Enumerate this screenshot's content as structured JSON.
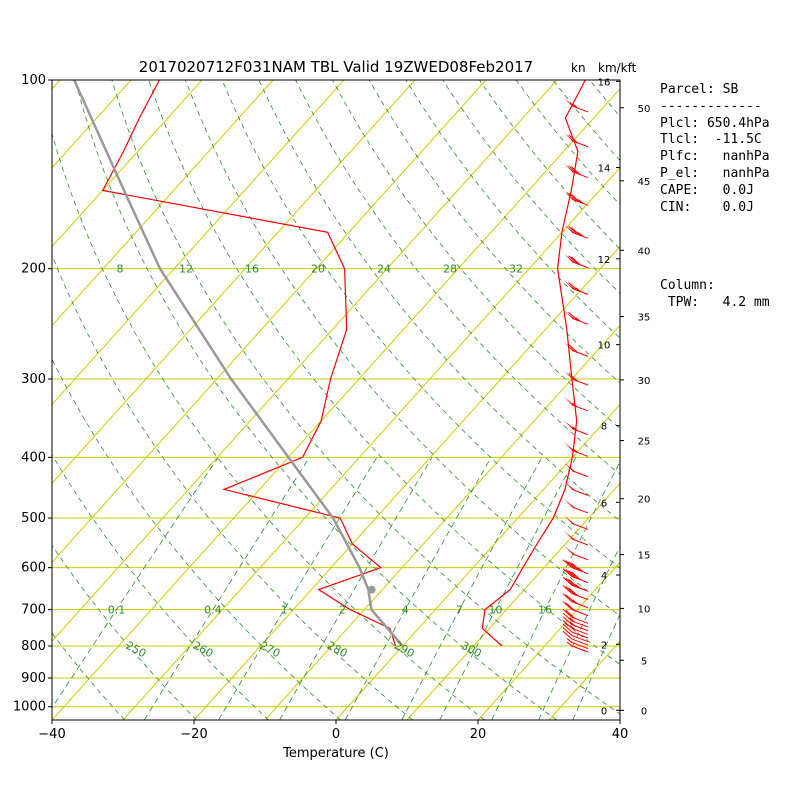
{
  "chart_data": {
    "type": "skew-t log-p sounding",
    "title": "2017020712F031NAM TBL Valid 19ZWED08Feb2017",
    "xlabel": "Temperature (C)",
    "ylabel": "",
    "x_ticks": [
      -40,
      -20,
      0,
      20,
      40
    ],
    "xlim": [
      -40,
      40
    ],
    "pressure_ticks": [
      100,
      200,
      300,
      400,
      500,
      600,
      700,
      800,
      900,
      1000
    ],
    "ylim_hpa": [
      1050,
      100
    ],
    "height_km_labels": [
      0,
      2,
      4,
      6,
      8,
      10,
      12,
      14,
      16
    ],
    "height_kft_labels": [
      0,
      5,
      10,
      15,
      20,
      25,
      30,
      35,
      40,
      45,
      50
    ],
    "wind_units_labels": [
      "kn",
      "km/kft"
    ],
    "dry_adiabat_labels": [
      "250",
      "260",
      "270",
      "280",
      "290",
      "300"
    ],
    "mixing_ratio_labels_700": [
      "0.1",
      "0.4",
      "1",
      "2",
      "4",
      "7",
      "10",
      "16"
    ],
    "mixing_ratio_labels_200": [
      "8",
      "12",
      "16",
      "20",
      "24",
      "28",
      "32"
    ],
    "temperature_profile": [
      {
        "p": 800,
        "t": 14.0
      },
      {
        "p": 750,
        "t": 9.0
      },
      {
        "p": 700,
        "t": 7.0
      },
      {
        "p": 650,
        "t": 8.0
      },
      {
        "p": 600,
        "t": 7.0
      },
      {
        "p": 550,
        "t": 6.0
      },
      {
        "p": 500,
        "t": 5.0
      },
      {
        "p": 450,
        "t": 3.0
      },
      {
        "p": 400,
        "t": 0.0
      },
      {
        "p": 350,
        "t": -4.0
      },
      {
        "p": 300,
        "t": -10.0
      },
      {
        "p": 250,
        "t": -17.0
      },
      {
        "p": 200,
        "t": -26.0
      },
      {
        "p": 175,
        "t": -30.0
      },
      {
        "p": 150,
        "t": -34.0
      },
      {
        "p": 130,
        "t": -38.0
      },
      {
        "p": 115,
        "t": -44.0
      },
      {
        "p": 100,
        "t": -46.0
      }
    ],
    "dewpoint_profile": [
      {
        "p": 800,
        "t": -1.0
      },
      {
        "p": 750,
        "t": -4.0
      },
      {
        "p": 700,
        "t": -12.0
      },
      {
        "p": 650,
        "t": -19.0
      },
      {
        "p": 600,
        "t": -13.0
      },
      {
        "p": 550,
        "t": -20.0
      },
      {
        "p": 500,
        "t": -25.0
      },
      {
        "p": 450,
        "t": -45.0
      },
      {
        "p": 400,
        "t": -38.0
      },
      {
        "p": 350,
        "t": -40.0
      },
      {
        "p": 300,
        "t": -44.0
      },
      {
        "p": 250,
        "t": -48.0
      },
      {
        "p": 200,
        "t": -56.0
      },
      {
        "p": 175,
        "t": -63.0
      },
      {
        "p": 150,
        "t": -100.0
      },
      {
        "p": 130,
        "t": -102.0
      },
      {
        "p": 115,
        "t": -104.0
      },
      {
        "p": 100,
        "t": -106.0
      }
    ],
    "parcel_profile": [
      {
        "p": 800,
        "t": 0.0
      },
      {
        "p": 700,
        "t": -9.0
      },
      {
        "p": 650,
        "t": -12.0
      },
      {
        "p": 600,
        "t": -16.0
      },
      {
        "p": 500,
        "t": -26.0
      },
      {
        "p": 400,
        "t": -40.0
      },
      {
        "p": 300,
        "t": -58.0
      },
      {
        "p": 200,
        "t": -82.0
      },
      {
        "p": 150,
        "t": -97.0
      },
      {
        "p": 100,
        "t": -118.0
      }
    ],
    "lcl_marker": {
      "p": 650.4,
      "t": -11.5
    },
    "wind_barbs": [
      {
        "p": 800,
        "spd": 5
      },
      {
        "p": 790,
        "spd": 5
      },
      {
        "p": 780,
        "spd": 10
      },
      {
        "p": 770,
        "spd": 10
      },
      {
        "p": 760,
        "spd": 10
      },
      {
        "p": 750,
        "spd": 15
      },
      {
        "p": 740,
        "spd": 15
      },
      {
        "p": 730,
        "spd": 15
      },
      {
        "p": 720,
        "spd": 20
      },
      {
        "p": 700,
        "spd": 20
      },
      {
        "p": 680,
        "spd": 25
      },
      {
        "p": 660,
        "spd": 30
      },
      {
        "p": 640,
        "spd": 35
      },
      {
        "p": 620,
        "spd": 40
      },
      {
        "p": 600,
        "spd": 45
      },
      {
        "p": 570,
        "spd": 50
      },
      {
        "p": 540,
        "spd": 50
      },
      {
        "p": 510,
        "spd": 50
      },
      {
        "p": 480,
        "spd": 50
      },
      {
        "p": 450,
        "spd": 50
      },
      {
        "p": 420,
        "spd": 50
      },
      {
        "p": 390,
        "spd": 55
      },
      {
        "p": 360,
        "spd": 55
      },
      {
        "p": 330,
        "spd": 55
      },
      {
        "p": 300,
        "spd": 60
      },
      {
        "p": 270,
        "spd": 60
      },
      {
        "p": 240,
        "spd": 65
      },
      {
        "p": 215,
        "spd": 65
      },
      {
        "p": 195,
        "spd": 70
      },
      {
        "p": 175,
        "spd": 75
      },
      {
        "p": 155,
        "spd": 75
      },
      {
        "p": 140,
        "spd": 70
      },
      {
        "p": 125,
        "spd": 60
      },
      {
        "p": 110,
        "spd": 55
      }
    ]
  },
  "parcel_info": "Parcel: SB\n-------------\nPlcl: 650.4hPa\nTlcl:  -11.5C\nPlfc:   nanhPa\nP_el:   nanhPa\nCAPE:   0.0J\nCIN:    0.0J",
  "column_info": "Column:\n TPW:   4.2 mm",
  "colors": {
    "temperature": "#ff0000",
    "dewpoint": "#ff0000",
    "parcel": "#999999",
    "isobar": "#cccc00",
    "isotherm": "#cccc00",
    "dry_adiabat": "#2e8b2e",
    "mixing_ratio": "#2e8b2e",
    "wind_barb": "#ff0000"
  }
}
